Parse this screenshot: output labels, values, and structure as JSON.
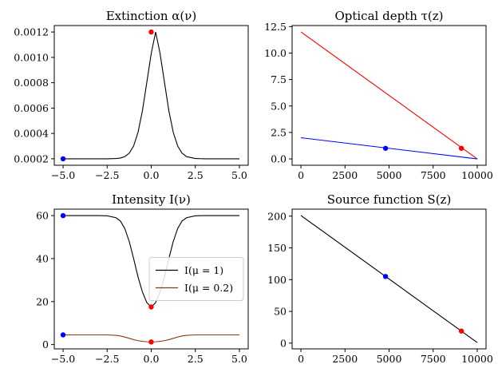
{
  "chart_data": [
    {
      "type": "line",
      "title": "Extinction α(ν)",
      "xlim": [
        -5.5,
        5.5
      ],
      "ylim": [
        0.000149,
        0.001251
      ],
      "xticks": [
        -5.0,
        -2.5,
        0.0,
        2.5,
        5.0
      ],
      "xtick_labels": [
        "−5.0",
        "−2.5",
        "0.0",
        "2.5",
        "5.0"
      ],
      "yticks": [
        0.0002,
        0.0004,
        0.0006,
        0.0008,
        0.001,
        0.0012
      ],
      "ytick_labels": [
        "0.0002",
        "0.0004",
        "0.0006",
        "0.0008",
        "0.0010",
        "0.0012"
      ],
      "grid": false,
      "series": [
        {
          "color": "#000000",
          "x": [
            -5,
            -4.5,
            -4,
            -3.5,
            -3,
            -2.5,
            -2,
            -1.75,
            -1.5,
            -1.25,
            -1,
            -0.75,
            -0.5,
            -0.25,
            0,
            0.25,
            0.5,
            0.75,
            1,
            1.25,
            1.5,
            1.75,
            2,
            2.5,
            3,
            3.5,
            4,
            4.5,
            5
          ],
          "y": [
            0.0002,
            0.0002,
            0.0002,
            0.0002,
            0.0002,
            0.0002,
            0.000202,
            0.000206,
            0.000217,
            0.000244,
            0.000301,
            0.000408,
            0.000578,
            0.000804,
            0.001031,
            0.0012,
            0.001031,
            0.000804,
            0.000578,
            0.000408,
            0.000301,
            0.000244,
            0.000217,
            0.000202,
            0.0002,
            0.0002,
            0.0002,
            0.0002,
            0.0002
          ]
        }
      ],
      "points": [
        {
          "x": -5.0,
          "y": 0.0002,
          "color": "#0000ff"
        },
        {
          "x": 0.0,
          "y": 0.0012,
          "color": "#ff0000"
        }
      ]
    },
    {
      "type": "line",
      "title": "Optical depth τ(z)",
      "xlim": [
        -500,
        10500
      ],
      "ylim": [
        -0.6,
        12.6
      ],
      "xticks": [
        0,
        2500,
        5000,
        7500,
        10000
      ],
      "xtick_labels": [
        "0",
        "2500",
        "5000",
        "7500",
        "10000"
      ],
      "yticks": [
        0,
        2.5,
        5,
        7.5,
        10,
        12.5
      ],
      "ytick_labels": [
        "0.0",
        "2.5",
        "5.0",
        "7.5",
        "10.0",
        "12.5"
      ],
      "grid": false,
      "series": [
        {
          "color": "#ff0000",
          "x": [
            0,
            10000
          ],
          "y": [
            12,
            0
          ]
        },
        {
          "color": "#0000ff",
          "x": [
            0,
            10000
          ],
          "y": [
            2,
            0
          ]
        }
      ],
      "points": [
        {
          "x": 4800,
          "y": 1.0,
          "color": "#0000ff"
        },
        {
          "x": 9100,
          "y": 1.0,
          "color": "#ff0000"
        }
      ]
    },
    {
      "type": "line",
      "title": "Intensity I(ν)",
      "xlim": [
        -5.5,
        5.5
      ],
      "ylim": [
        -2,
        63
      ],
      "xticks": [
        -5.0,
        -2.5,
        0.0,
        2.5,
        5.0
      ],
      "xtick_labels": [
        "−5.0",
        "−2.5",
        "0.0",
        "2.5",
        "5.0"
      ],
      "yticks": [
        0,
        20,
        40,
        60
      ],
      "ytick_labels": [
        "0",
        "20",
        "40",
        "60"
      ],
      "grid": false,
      "legend": "center-right",
      "series": [
        {
          "name": "I(μ = 1)",
          "color": "#000000",
          "x": [
            -5,
            -4,
            -3,
            -2.5,
            -2,
            -1.75,
            -1.5,
            -1.25,
            -1,
            -0.75,
            -0.5,
            -0.25,
            0,
            0.25,
            0.5,
            0.75,
            1,
            1.25,
            1.5,
            1.75,
            2,
            2.5,
            3,
            4,
            5
          ],
          "y": [
            60,
            60,
            60,
            59.9,
            59,
            57.5,
            54,
            48,
            40,
            31.5,
            24.5,
            19.5,
            17.5,
            19.5,
            24.5,
            31.5,
            40,
            48,
            54,
            57.5,
            59,
            59.9,
            60,
            60,
            60
          ]
        },
        {
          "name": "I(μ = 0.2)",
          "color": "#8b3a0f",
          "x": [
            -5,
            -4,
            -3,
            -2.5,
            -2,
            -1.75,
            -1.5,
            -1.25,
            -1,
            -0.75,
            -0.5,
            -0.25,
            0,
            0.25,
            0.5,
            0.75,
            1,
            1.25,
            1.5,
            1.75,
            2,
            2.5,
            3,
            4,
            5
          ],
          "y": [
            4.5,
            4.5,
            4.5,
            4.5,
            4.3,
            4.0,
            3.5,
            2.9,
            2.3,
            1.8,
            1.5,
            1.3,
            1.2,
            1.3,
            1.5,
            1.8,
            2.3,
            2.9,
            3.5,
            4.0,
            4.3,
            4.5,
            4.5,
            4.5,
            4.5
          ]
        }
      ],
      "points": [
        {
          "x": -5.0,
          "y": 60,
          "color": "#0000ff"
        },
        {
          "x": 0.0,
          "y": 17.5,
          "color": "#ff0000"
        },
        {
          "x": -5.0,
          "y": 4.5,
          "color": "#0000ff"
        },
        {
          "x": 0.0,
          "y": 1.2,
          "color": "#ff0000"
        }
      ]
    },
    {
      "type": "line",
      "title": "Source function S(z)",
      "xlim": [
        -500,
        10500
      ],
      "ylim": [
        -9,
        211
      ],
      "xticks": [
        0,
        2500,
        5000,
        7500,
        10000
      ],
      "xtick_labels": [
        "0",
        "2500",
        "5000",
        "7500",
        "10000"
      ],
      "yticks": [
        0,
        50,
        100,
        150,
        200
      ],
      "ytick_labels": [
        "0",
        "50",
        "100",
        "150",
        "200"
      ],
      "grid": false,
      "series": [
        {
          "color": "#000000",
          "x": [
            0,
            10000
          ],
          "y": [
            201,
            1
          ]
        }
      ],
      "points": [
        {
          "x": 4800,
          "y": 105,
          "color": "#0000ff"
        },
        {
          "x": 9100,
          "y": 19,
          "color": "#ff0000"
        }
      ]
    }
  ]
}
